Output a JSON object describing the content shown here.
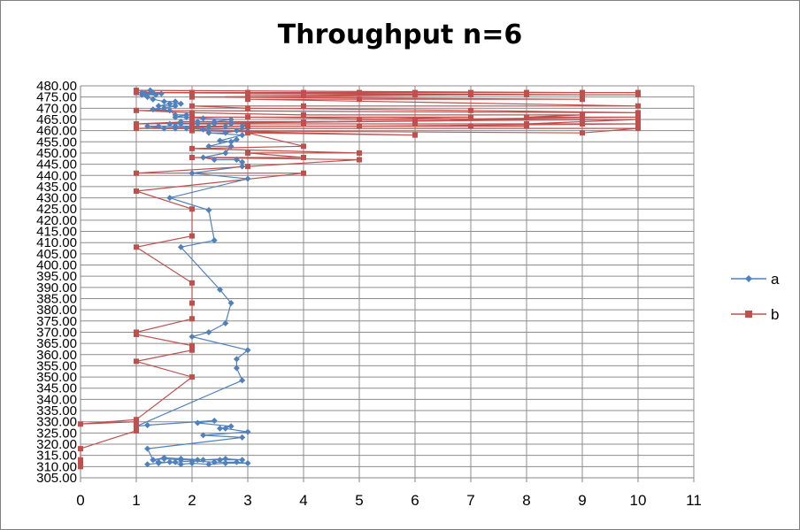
{
  "chart_data": {
    "type": "scatter",
    "title": "Throughput n=6",
    "xlabel": "",
    "ylabel": "",
    "xlim": [
      0,
      11
    ],
    "ylim": [
      305,
      480
    ],
    "xticks": [
      "0",
      "1",
      "2",
      "3",
      "4",
      "5",
      "6",
      "7",
      "8",
      "9",
      "10",
      "11"
    ],
    "yticks": [
      "305.00",
      "310.00",
      "315.00",
      "320.00",
      "325.00",
      "330.00",
      "335.00",
      "340.00",
      "345.00",
      "350.00",
      "355.00",
      "360.00",
      "365.00",
      "370.00",
      "375.00",
      "380.00",
      "385.00",
      "390.00",
      "395.00",
      "400.00",
      "405.00",
      "410.00",
      "415.00",
      "420.00",
      "425.00",
      "430.00",
      "435.00",
      "440.00",
      "445.00",
      "450.00",
      "455.00",
      "460.00",
      "465.00",
      "470.00",
      "475.00",
      "480.00"
    ],
    "grid": "horizontal major, vertical major",
    "legend": "right",
    "series": [
      {
        "name": "a",
        "color": "#4f81bd",
        "marker": "diamond",
        "points": [
          [
            1.2,
            311
          ],
          [
            1.4,
            311.5
          ],
          [
            1.6,
            312
          ],
          [
            1.8,
            311
          ],
          [
            2.0,
            311.5
          ],
          [
            2.3,
            311
          ],
          [
            2.6,
            311.5
          ],
          [
            3.0,
            311.5
          ],
          [
            2.8,
            312
          ],
          [
            2.4,
            312
          ],
          [
            2.0,
            312.5
          ],
          [
            1.7,
            312
          ],
          [
            1.4,
            312
          ],
          [
            1.3,
            313
          ],
          [
            1.5,
            313.5
          ],
          [
            1.8,
            313
          ],
          [
            2.1,
            313
          ],
          [
            2.5,
            313
          ],
          [
            2.9,
            313
          ],
          [
            2.6,
            313.5
          ],
          [
            2.2,
            313
          ],
          [
            1.8,
            313.5
          ],
          [
            1.5,
            314
          ],
          [
            1.3,
            313
          ],
          [
            1.2,
            318
          ],
          [
            2.9,
            323
          ],
          [
            2.2,
            324
          ],
          [
            3.0,
            325.5
          ],
          [
            2.6,
            327
          ],
          [
            2.5,
            327
          ],
          [
            2.7,
            328
          ],
          [
            2.1,
            329.5
          ],
          [
            2.4,
            330.5
          ],
          [
            1.2,
            328.5
          ],
          [
            1.0,
            328
          ],
          [
            2.9,
            348.5
          ],
          [
            2.8,
            354
          ],
          [
            2.8,
            358
          ],
          [
            3.0,
            362
          ],
          [
            2.0,
            368
          ],
          [
            2.3,
            370
          ],
          [
            2.6,
            374
          ],
          [
            2.7,
            383
          ],
          [
            2.5,
            389
          ],
          [
            1.8,
            408
          ],
          [
            2.4,
            411
          ],
          [
            2.3,
            424.5
          ],
          [
            1.6,
            430
          ],
          [
            3.0,
            438.5
          ],
          [
            2.0,
            441
          ],
          [
            2.9,
            444
          ],
          [
            2.9,
            446
          ],
          [
            2.8,
            447
          ],
          [
            2.4,
            447
          ],
          [
            2.2,
            448
          ],
          [
            2.6,
            450
          ],
          [
            2.7,
            453
          ],
          [
            2.3,
            453
          ],
          [
            2.8,
            456
          ],
          [
            2.7,
            455
          ],
          [
            2.5,
            455.5
          ],
          [
            2.9,
            458
          ],
          [
            2.3,
            459
          ],
          [
            2.6,
            459
          ],
          [
            2.8,
            460
          ],
          [
            3.0,
            461
          ],
          [
            2.2,
            460.5
          ],
          [
            1.9,
            461
          ],
          [
            1.7,
            461
          ],
          [
            1.5,
            461
          ],
          [
            1.2,
            462
          ],
          [
            1.4,
            462
          ],
          [
            1.7,
            462
          ],
          [
            2.0,
            462
          ],
          [
            2.3,
            462
          ],
          [
            2.6,
            462
          ],
          [
            2.9,
            462
          ],
          [
            3.0,
            463
          ],
          [
            2.7,
            463
          ],
          [
            2.4,
            463
          ],
          [
            2.1,
            463
          ],
          [
            1.8,
            463
          ],
          [
            1.6,
            463
          ],
          [
            1.8,
            464
          ],
          [
            2.1,
            464
          ],
          [
            2.4,
            464
          ],
          [
            2.7,
            465
          ],
          [
            2.2,
            465.5
          ],
          [
            1.9,
            466
          ],
          [
            1.7,
            466
          ],
          [
            1.9,
            467
          ],
          [
            1.7,
            467
          ],
          [
            1.6,
            469
          ],
          [
            1.3,
            469.5
          ],
          [
            1.5,
            470
          ],
          [
            1.7,
            471
          ],
          [
            1.4,
            471
          ],
          [
            1.6,
            472
          ],
          [
            1.8,
            472
          ],
          [
            1.7,
            473
          ],
          [
            1.5,
            473
          ],
          [
            1.3,
            474
          ],
          [
            1.2,
            475
          ],
          [
            1.1,
            476
          ],
          [
            1.35,
            476
          ],
          [
            1.15,
            476.5
          ],
          [
            1.45,
            476.5
          ],
          [
            1.3,
            477
          ],
          [
            1.1,
            477
          ],
          [
            1.25,
            478
          ]
        ]
      },
      {
        "name": "b",
        "color": "#c0504d",
        "marker": "square",
        "points": [
          [
            0,
            310
          ],
          [
            0,
            311
          ],
          [
            0,
            312
          ],
          [
            0,
            313
          ],
          [
            0,
            318
          ],
          [
            1,
            326
          ],
          [
            1,
            327
          ],
          [
            1,
            328
          ],
          [
            1,
            329
          ],
          [
            1,
            330
          ],
          [
            0,
            329
          ],
          [
            1,
            331
          ],
          [
            2,
            350
          ],
          [
            1,
            357
          ],
          [
            2,
            362
          ],
          [
            2,
            364
          ],
          [
            1,
            369
          ],
          [
            1,
            370
          ],
          [
            2,
            376
          ],
          [
            2,
            383
          ],
          [
            2,
            392
          ],
          [
            1,
            408
          ],
          [
            2,
            413
          ],
          [
            2,
            425
          ],
          [
            1,
            433
          ],
          [
            4,
            441
          ],
          [
            1,
            441
          ],
          [
            3,
            444
          ],
          [
            5,
            447
          ],
          [
            2,
            448
          ],
          [
            4,
            448
          ],
          [
            3,
            450
          ],
          [
            5,
            450
          ],
          [
            2,
            452
          ],
          [
            4,
            453
          ],
          [
            3,
            459
          ],
          [
            6,
            458
          ],
          [
            2,
            460
          ],
          [
            9,
            459
          ],
          [
            10,
            461
          ],
          [
            1,
            461
          ],
          [
            3,
            462
          ],
          [
            8,
            462
          ],
          [
            2,
            462
          ],
          [
            7,
            462
          ],
          [
            5,
            462
          ],
          [
            10,
            463
          ],
          [
            4,
            463
          ],
          [
            9,
            463
          ],
          [
            2,
            463
          ],
          [
            6,
            463
          ],
          [
            3,
            463
          ],
          [
            8,
            463
          ],
          [
            10,
            465
          ],
          [
            4,
            464
          ],
          [
            2,
            464
          ],
          [
            1,
            463
          ],
          [
            9,
            465
          ],
          [
            5,
            465
          ],
          [
            7,
            466
          ],
          [
            2,
            466
          ],
          [
            3,
            466
          ],
          [
            6,
            465
          ],
          [
            10,
            466
          ],
          [
            8,
            466
          ],
          [
            9,
            467
          ],
          [
            4,
            467
          ],
          [
            2,
            468
          ],
          [
            1,
            469
          ],
          [
            10,
            468
          ],
          [
            7,
            469
          ],
          [
            3,
            470
          ],
          [
            2,
            471
          ],
          [
            4,
            471
          ],
          [
            10,
            471
          ],
          [
            3,
            474
          ],
          [
            5,
            474
          ],
          [
            9,
            474
          ],
          [
            2,
            475
          ],
          [
            7,
            476
          ],
          [
            6,
            476
          ],
          [
            10,
            476
          ],
          [
            4,
            476
          ],
          [
            3,
            476
          ],
          [
            8,
            476
          ],
          [
            9,
            476
          ],
          [
            1,
            477
          ],
          [
            3,
            477
          ],
          [
            10,
            477
          ],
          [
            7,
            477
          ],
          [
            6,
            477
          ],
          [
            2,
            477
          ],
          [
            5,
            477
          ],
          [
            4,
            477
          ],
          [
            8,
            477
          ],
          [
            9,
            477
          ],
          [
            1,
            478
          ]
        ]
      }
    ]
  }
}
